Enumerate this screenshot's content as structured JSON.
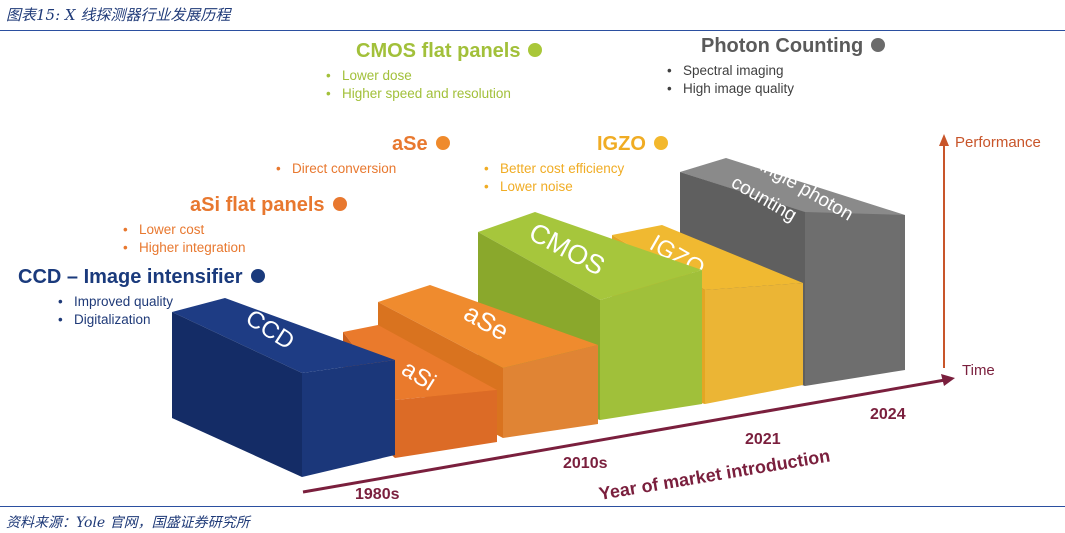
{
  "caption": "图表15: X 线探测器行业发展历程",
  "source": "资料来源：Yole 官网，国盛证券研究所",
  "axis": {
    "x_label": "Year of market introduction",
    "x_end_label": "Time",
    "y_label": "Performance",
    "years": [
      "1980s",
      "2010s",
      "2021",
      "2024"
    ]
  },
  "technologies": [
    {
      "title": "CCD – Image intensifier",
      "dot_color": "#1a3a7c",
      "text_color": "#1a3a7c",
      "bullets": [
        "Improved quality",
        "Digitalization"
      ]
    },
    {
      "title": "aSi flat panels",
      "dot_color": "#e8782f",
      "text_color": "#e8782f",
      "bullets": [
        "Lower cost",
        "Higher integration"
      ]
    },
    {
      "title": "aSe",
      "dot_color": "#ef8a2c",
      "text_color": "#e8782f",
      "bullets": [
        "Direct conversion"
      ]
    },
    {
      "title": "CMOS flat panels",
      "dot_color": "#a9c739",
      "text_color": "#a2c03a",
      "bullets": [
        "Lower dose",
        "Higher speed and resolution"
      ]
    },
    {
      "title": "IGZO",
      "dot_color": "#f3b82d",
      "text_color": "#f0ac24",
      "bullets": [
        "Better cost efficiency",
        "Lower noise"
      ]
    },
    {
      "title": "Photon Counting",
      "dot_color": "#6b6b6b",
      "text_color": "#5a5a5a",
      "bullets": [
        "Spectral imaging",
        "High image quality"
      ]
    }
  ],
  "blocks": {
    "ccd": "CCD",
    "asi": "aSi",
    "ase": "aSe",
    "cmos": "CMOS",
    "igzo": "IGZO",
    "photon_line1": "Single photon",
    "photon_line2": "counting"
  },
  "colors": {
    "axis": "#7a1f3d",
    "performance": "#c8552a",
    "bullet_text": "#1f3a78"
  }
}
